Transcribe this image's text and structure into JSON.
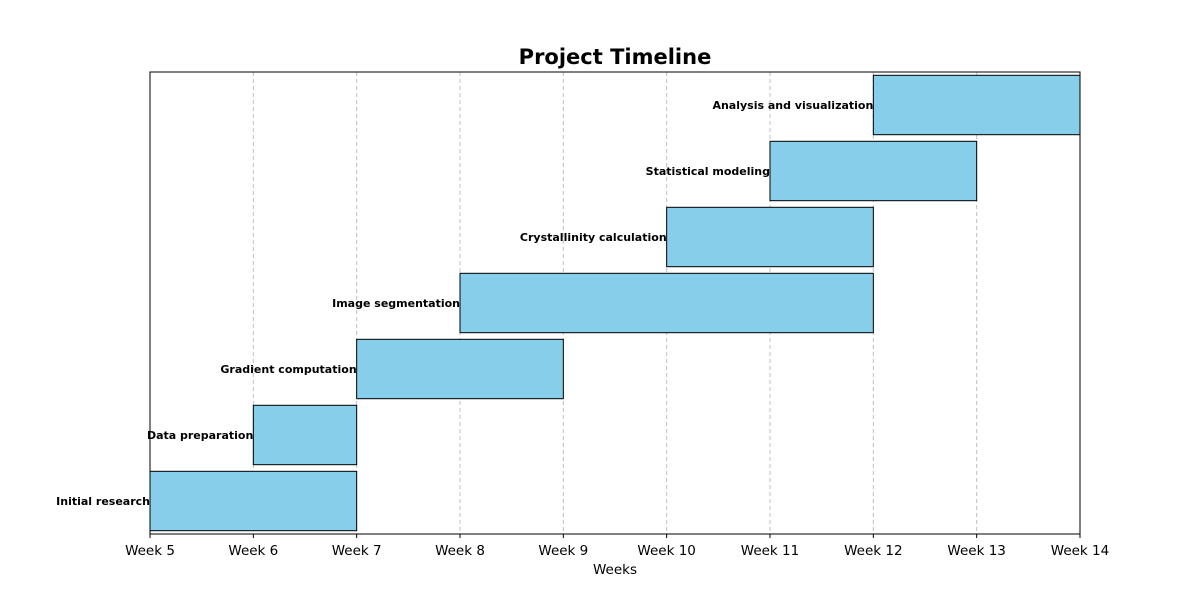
{
  "chart_data": {
    "type": "bar",
    "orientation": "horizontal",
    "title": "Project Timeline",
    "xlabel": "Weeks",
    "ylabel": "",
    "xlim": [
      5,
      14
    ],
    "x_ticks": [
      {
        "value": 5,
        "label": "Week 5"
      },
      {
        "value": 6,
        "label": "Week 6"
      },
      {
        "value": 7,
        "label": "Week 7"
      },
      {
        "value": 8,
        "label": "Week 8"
      },
      {
        "value": 9,
        "label": "Week 9"
      },
      {
        "value": 10,
        "label": "Week 10"
      },
      {
        "value": 11,
        "label": "Week 11"
      },
      {
        "value": 12,
        "label": "Week 12"
      },
      {
        "value": 13,
        "label": "Week 13"
      },
      {
        "value": 14,
        "label": "Week 14"
      }
    ],
    "grid": "vertical dashed",
    "bar_color": "#87ceeb",
    "bar_edge_color": "#000000",
    "tasks": [
      {
        "name": "Initial research",
        "start": 5,
        "end": 7
      },
      {
        "name": "Data preparation",
        "start": 6,
        "end": 7
      },
      {
        "name": "Gradient computation",
        "start": 7,
        "end": 9
      },
      {
        "name": "Image segmentation",
        "start": 8,
        "end": 12
      },
      {
        "name": "Crystallinity calculation",
        "start": 10,
        "end": 12
      },
      {
        "name": "Statistical modeling",
        "start": 11,
        "end": 13
      },
      {
        "name": "Analysis and visualization",
        "start": 12,
        "end": 14
      }
    ]
  }
}
